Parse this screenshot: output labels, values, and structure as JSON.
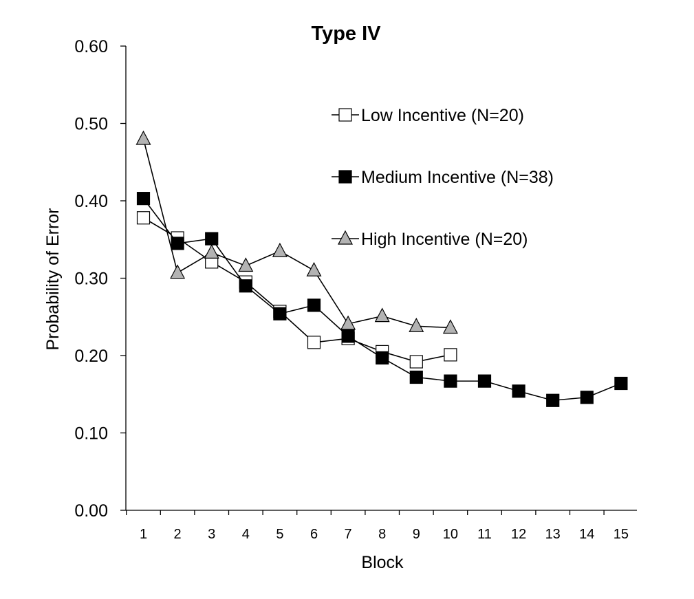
{
  "chart_data": {
    "type": "line",
    "title": "Type IV",
    "xlabel": "Block",
    "ylabel": "Probability of Error",
    "x": [
      1,
      2,
      3,
      4,
      5,
      6,
      7,
      8,
      9,
      10,
      11,
      12,
      13,
      14,
      15
    ],
    "x_tick_labels": [
      "1",
      "2",
      "3",
      "4",
      "5",
      "6",
      "7",
      "8",
      "9",
      "10",
      "11",
      "12",
      "13",
      "14",
      "15"
    ],
    "ylim": [
      0,
      0.6
    ],
    "y_ticks": [
      0,
      0.1,
      0.2,
      0.3,
      0.4,
      0.5,
      0.6
    ],
    "y_tick_labels": [
      "0.00",
      "0.10",
      "0.20",
      "0.30",
      "0.40",
      "0.50",
      "0.60"
    ],
    "grid": false,
    "legend_position": "upper-right inside plot",
    "series": [
      {
        "name": "Low Incentive (N=20)",
        "marker": "square",
        "fill": "#ffffff",
        "x": [
          1,
          2,
          3,
          4,
          5,
          6,
          7,
          8,
          9,
          10
        ],
        "values": [
          0.378,
          0.352,
          0.321,
          0.295,
          0.257,
          0.217,
          0.222,
          0.205,
          0.192,
          0.201
        ]
      },
      {
        "name": "Medium Incentive (N=38)",
        "marker": "square",
        "fill": "#000000",
        "x": [
          1,
          2,
          3,
          4,
          5,
          6,
          7,
          8,
          9,
          10,
          11,
          12,
          13,
          14,
          15
        ],
        "values": [
          0.403,
          0.345,
          0.351,
          0.29,
          0.254,
          0.265,
          0.225,
          0.197,
          0.172,
          0.167,
          0.167,
          0.154,
          0.142,
          0.146,
          0.164
        ]
      },
      {
        "name": "High Incentive (N=20)",
        "marker": "triangle",
        "fill": "#b3b3b3",
        "x": [
          1,
          2,
          3,
          4,
          5,
          6,
          7,
          8,
          9,
          10
        ],
        "values": [
          0.48,
          0.307,
          0.333,
          0.316,
          0.335,
          0.31,
          0.241,
          0.251,
          0.238,
          0.236
        ]
      }
    ]
  }
}
